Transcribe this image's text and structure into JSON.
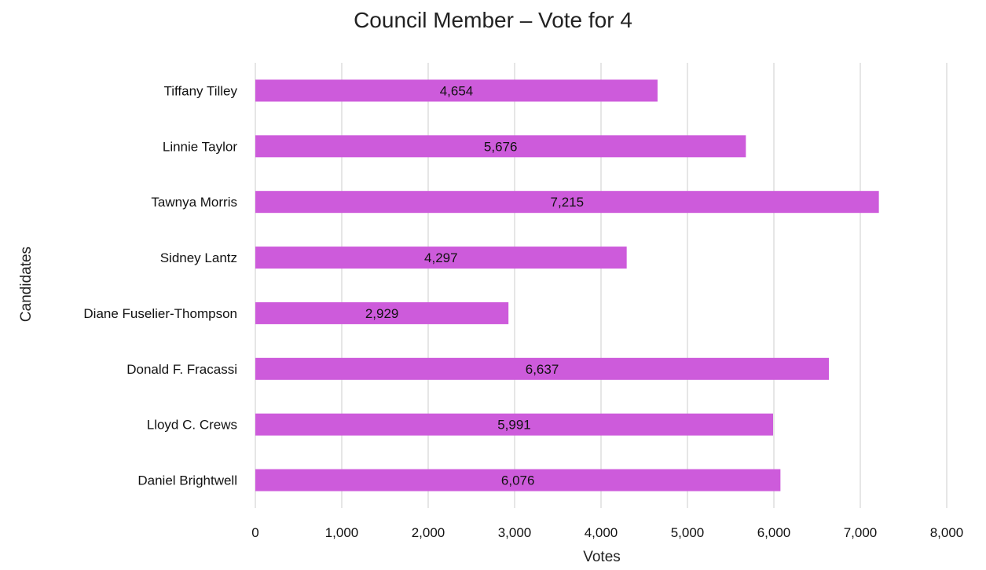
{
  "chart_data": {
    "type": "bar",
    "orientation": "horizontal",
    "title": "Council Member – Vote for 4",
    "xlabel": "Votes",
    "ylabel": "Candidates",
    "categories": [
      "Tiffany Tilley",
      "Linnie Taylor",
      "Tawnya Morris",
      "Sidney Lantz",
      "Diane Fuselier-Thompson",
      "Donald F. Fracassi",
      "Lloyd C. Crews",
      "Daniel Brightwell"
    ],
    "values": [
      4654,
      5676,
      7215,
      4297,
      2929,
      6637,
      5991,
      6076
    ],
    "data_labels": [
      "4,654",
      "5,676",
      "7,215",
      "4,297",
      "2,929",
      "6,637",
      "5,991",
      "6,076"
    ],
    "xlim": [
      0,
      8000
    ],
    "x_ticks": [
      0,
      1000,
      2000,
      3000,
      4000,
      5000,
      6000,
      7000,
      8000
    ],
    "x_tick_labels": [
      "0",
      "1,000",
      "2,000",
      "3,000",
      "4,000",
      "5,000",
      "6,000",
      "7,000",
      "8,000"
    ],
    "grid": "vertical",
    "legend": "none",
    "bar_color": "#cd5bdb",
    "grid_color": "#d9d9d9"
  }
}
